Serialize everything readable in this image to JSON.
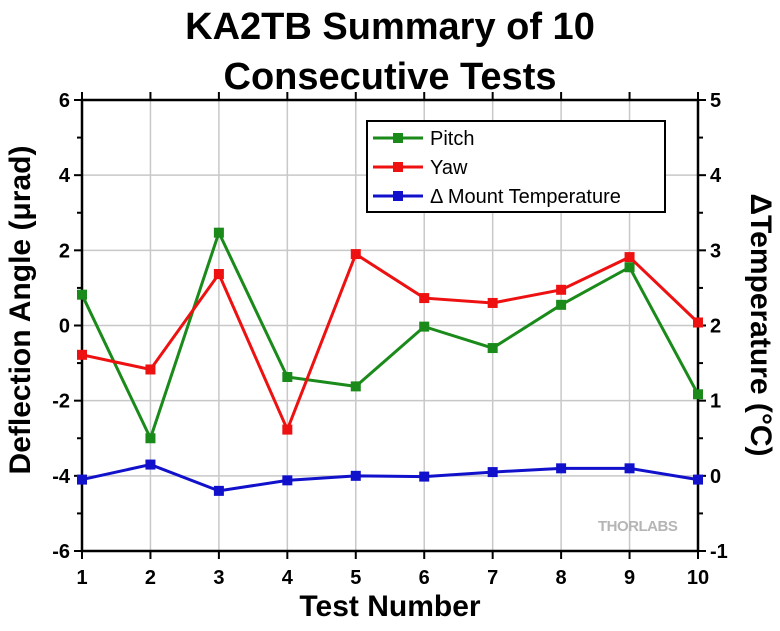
{
  "chart_data": {
    "type": "line",
    "title_line1": "KA2TB Summary of 10",
    "title_line2": "Consecutive Tests",
    "xlabel": "Test Number",
    "ylabel": "Deflection Angle (μrad)",
    "ylabel_right": "ΔTemperature (°C)",
    "x": [
      1,
      2,
      3,
      4,
      5,
      6,
      7,
      8,
      9,
      10
    ],
    "xlim": [
      1,
      10
    ],
    "ylim": [
      -6,
      6
    ],
    "ylim_right": [
      -1,
      5
    ],
    "yticks": [
      -6,
      -4,
      -2,
      0,
      2,
      4,
      6
    ],
    "yticks_right": [
      -1,
      0,
      1,
      2,
      3,
      4,
      5
    ],
    "grid": true,
    "legend_position": "top-right",
    "series": [
      {
        "name": "Pitch",
        "axis": "left",
        "color": "#1a8a1a",
        "values": [
          0.82,
          -3.0,
          2.47,
          -1.37,
          -1.62,
          -0.03,
          -0.6,
          0.55,
          1.55,
          -1.83
        ]
      },
      {
        "name": "Yaw",
        "axis": "left",
        "color": "#ee1111",
        "values": [
          -0.78,
          -1.17,
          1.37,
          -2.77,
          1.9,
          0.73,
          0.6,
          0.95,
          1.82,
          0.08
        ]
      },
      {
        "name": "Δ Mount Temperature",
        "axis": "right",
        "color": "#1111cc",
        "values": [
          -0.05,
          0.15,
          -0.2,
          -0.06,
          0.0,
          -0.01,
          0.05,
          0.1,
          0.1,
          -0.05
        ]
      }
    ],
    "watermark": "THORLABS"
  }
}
